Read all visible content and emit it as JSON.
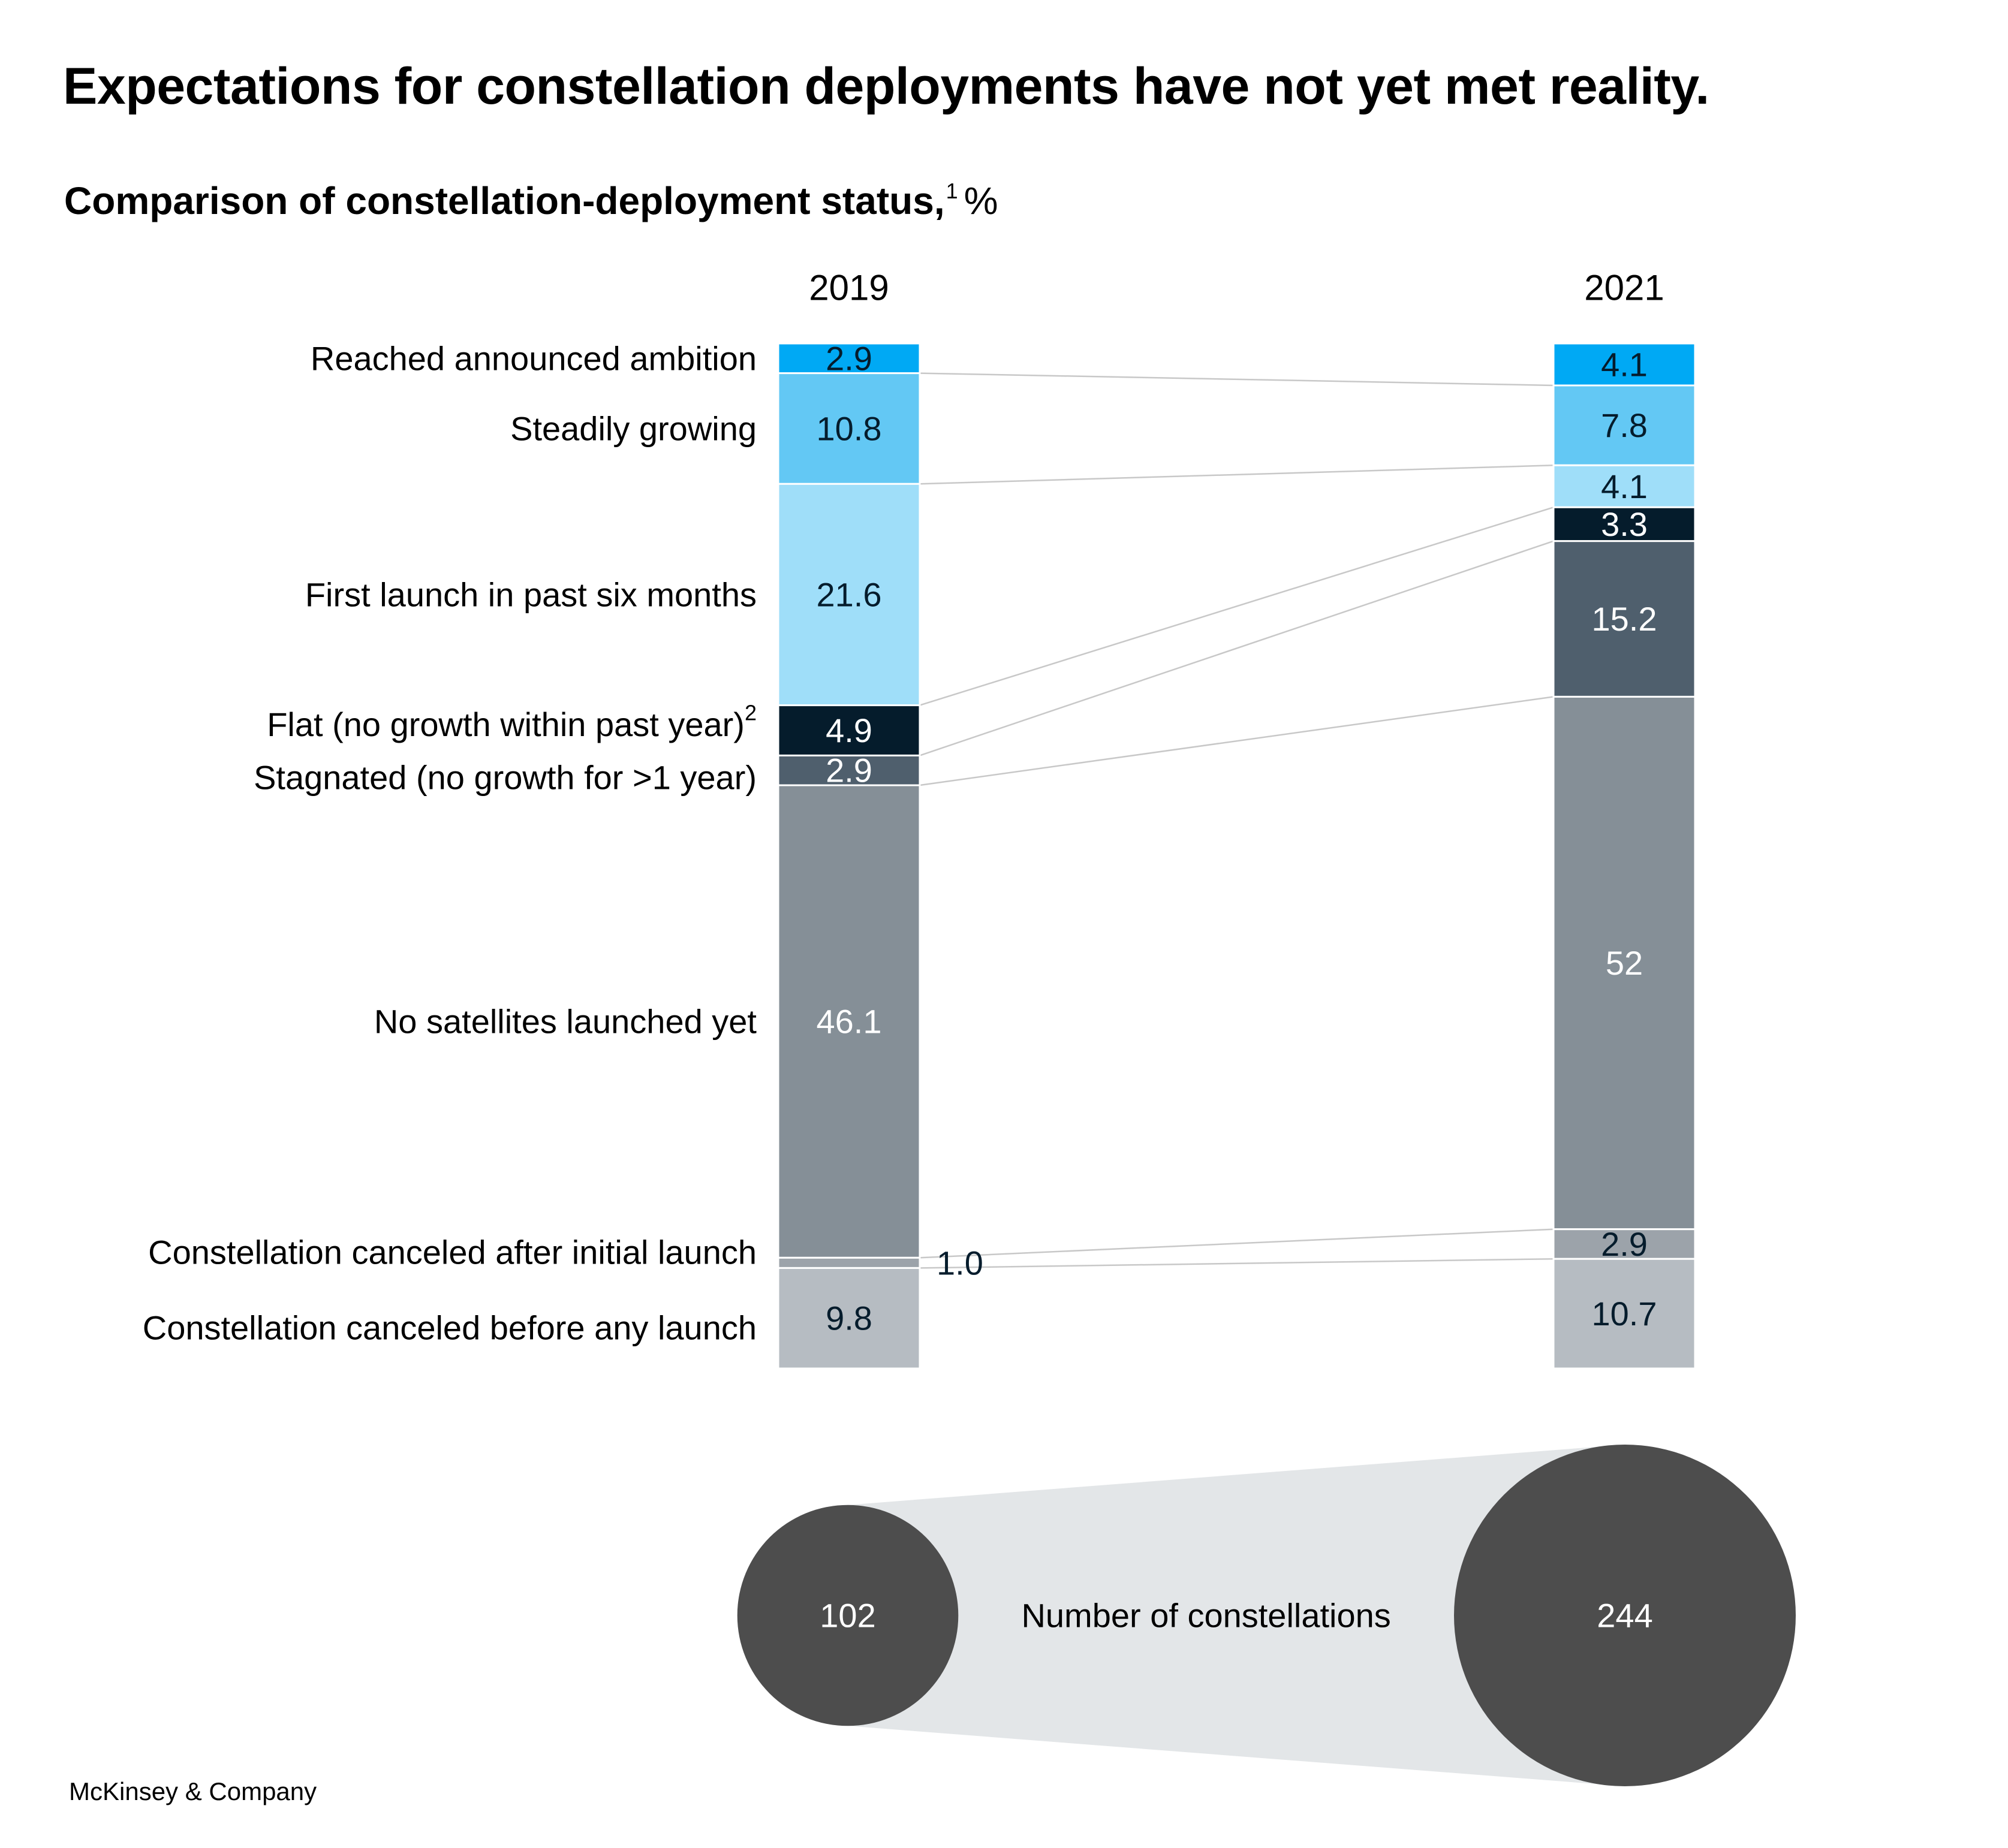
{
  "title": "Expectations for constellation deployments have not yet met reality.",
  "subtitle": "Comparison of constellation-deployment status,",
  "subtitle_footnote": "1",
  "subtitle_unit": "%",
  "chart_data": {
    "type": "bar",
    "stacked": true,
    "orientation": "vertical",
    "unit": "%",
    "categories": [
      "2019",
      "2021"
    ],
    "series": [
      {
        "name": "Reached announced ambition",
        "color": "#00a9f4",
        "label_color": "#051c2c",
        "values": [
          2.9,
          4.1
        ],
        "labels": [
          "2.9",
          "4.1"
        ]
      },
      {
        "name": "Steadily growing",
        "color": "#63c8f4",
        "label_color": "#051c2c",
        "values": [
          10.8,
          7.8
        ],
        "labels": [
          "10.8",
          "7.8"
        ]
      },
      {
        "name": "First launch in past six months",
        "color": "#9fdef9",
        "label_color": "#051c2c",
        "values": [
          21.6,
          4.1
        ],
        "labels": [
          "21.6",
          "4.1"
        ]
      },
      {
        "name": "Flat (no growth within past year)",
        "footnote": "2",
        "color": "#051c2c",
        "label_color": "#ffffff",
        "values": [
          4.9,
          3.3
        ],
        "labels": [
          "4.9",
          "3.3"
        ]
      },
      {
        "name": "Stagnated (no growth for >1 year)",
        "color": "#4f5f6d",
        "label_color": "#ffffff",
        "values": [
          2.9,
          15.2
        ],
        "labels": [
          "2.9",
          "15.2"
        ]
      },
      {
        "name": "No satellites launched yet",
        "color": "#858f97",
        "label_color": "#ffffff",
        "values": [
          46.1,
          52
        ],
        "labels": [
          "46.1",
          "52"
        ]
      },
      {
        "name": "Constellation canceled after initial launch",
        "color": "#9ca3aa",
        "label_color": "#051c2c",
        "values": [
          1.0,
          2.9
        ],
        "labels": [
          "1.0",
          "2.9"
        ]
      },
      {
        "name": "Constellation canceled before any launch",
        "color": "#b6bcc2",
        "label_color": "#051c2c",
        "values": [
          9.8,
          10.7
        ],
        "labels": [
          "9.8",
          "10.7"
        ]
      }
    ],
    "ylim": [
      0,
      100
    ],
    "connector_color": "#c8c8c8",
    "totals": {
      "label": "Number of constellations",
      "values": [
        102,
        244
      ],
      "bubble_color": "#4d4d4d",
      "band_color": "#e3e6e8",
      "text_color": "#ffffff"
    }
  },
  "footer": "McKinsey & Company"
}
